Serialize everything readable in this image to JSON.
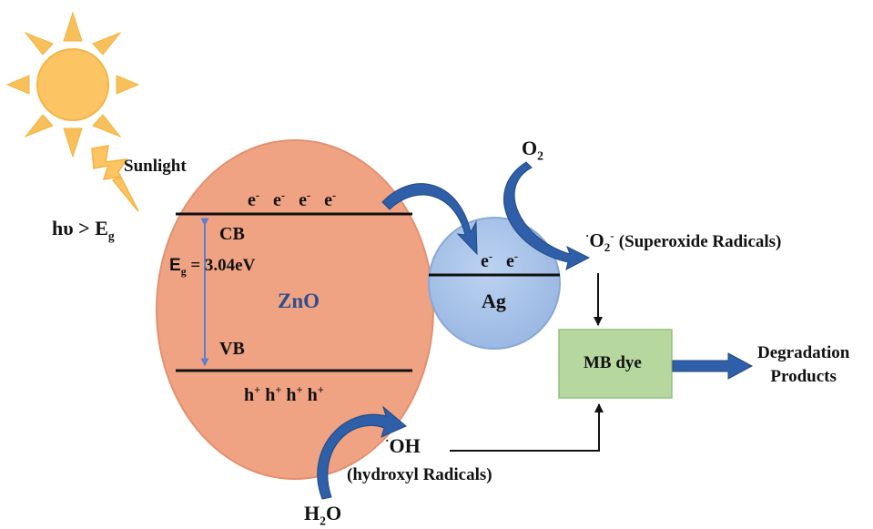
{
  "colors": {
    "sun": "#fcc463",
    "sun_ray": "#f8c05a",
    "zno_fill": "#f0a383",
    "ag_fill": "#a9c5ea",
    "dye_box": "#b6d89f",
    "arrow_blue": "#2e5fa8",
    "eg_line": "#5b7fd0",
    "zno_text": "#2d4f8e"
  },
  "icons": {
    "sun": "sun-icon",
    "lightning": "lightning-bolt-icon"
  },
  "labels": {
    "sunlight": "Sunlight",
    "hv_main": "hυ > E",
    "hv_sub": "g",
    "zno_electrons": [
      {
        "base": "e",
        "sup": "-"
      },
      {
        "base": "e",
        "sup": "-"
      },
      {
        "base": "e",
        "sup": "-"
      },
      {
        "base": "e",
        "sup": "-"
      }
    ],
    "cb": "CB",
    "eg_main": "E",
    "eg_sub": "g",
    "eg_value": "= 3.04eV",
    "zno": "ZnO",
    "vb": "VB",
    "zno_holes": [
      {
        "base": "h",
        "sup": "+"
      },
      {
        "base": "h",
        "sup": "+"
      },
      {
        "base": "h",
        "sup": "+"
      },
      {
        "base": "h",
        "sup": "+"
      }
    ],
    "ag_electrons": [
      {
        "base": "e",
        "sup": "-"
      },
      {
        "base": "e",
        "sup": "-"
      }
    ],
    "ag": "Ag",
    "o2_main": "O",
    "o2_sub": "2",
    "superoxide_dot": "·",
    "superoxide_main": "O",
    "superoxide_sub": "2",
    "superoxide_sup": "-",
    "superoxide_desc": "(Superoxide Radicals)",
    "mb_dye": "MB dye",
    "degradation_1": "Degradation",
    "degradation_2": "Products",
    "oh_dot": "·",
    "oh_main": "OH",
    "oh_desc": "(hydroxyl Radicals)",
    "h2o_main": "H",
    "h2o_sub": "2",
    "h2o_end": "O"
  }
}
